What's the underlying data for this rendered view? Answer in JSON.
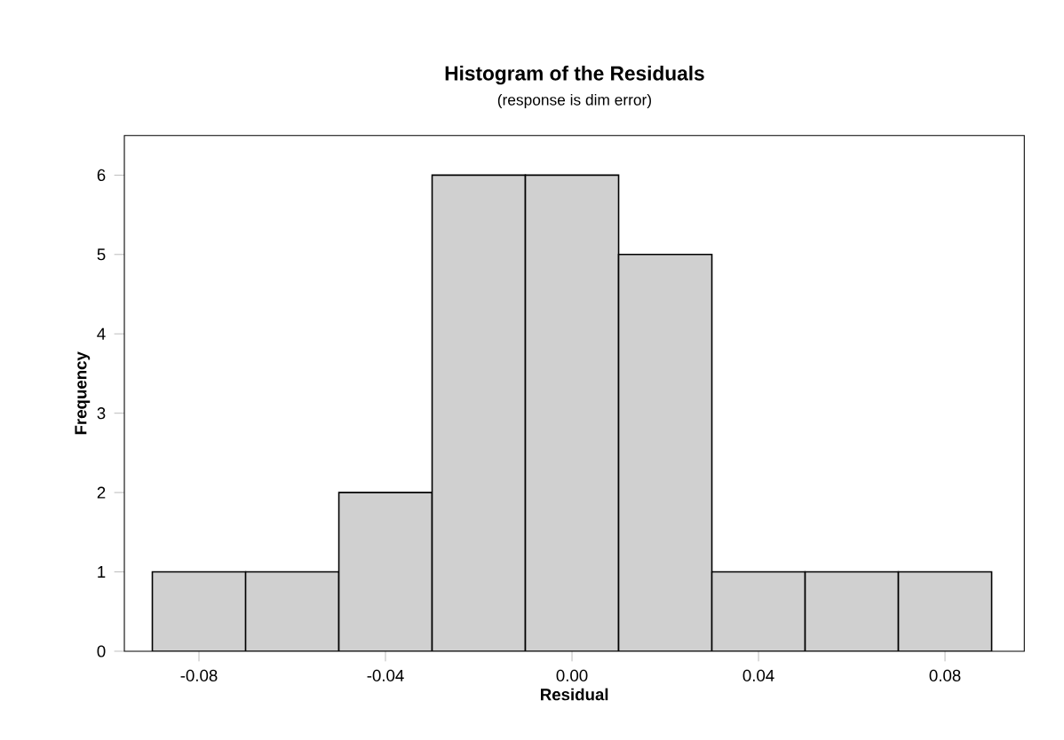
{
  "chart_data": {
    "type": "histogram",
    "title": "Histogram of the Residuals",
    "subtitle": "(response is dim error)",
    "xlabel": "Residual",
    "ylabel": "Frequency",
    "bins": [
      -0.09,
      -0.07,
      -0.05,
      -0.03,
      -0.01,
      0.01,
      0.03,
      0.05,
      0.07,
      0.09
    ],
    "values": [
      1,
      1,
      2,
      6,
      6,
      5,
      1,
      1,
      1
    ],
    "color": "#d0d0d0",
    "xlim": [
      -0.096,
      0.097
    ],
    "ylim": [
      0,
      6.5
    ],
    "xticks": [
      -0.08,
      -0.04,
      {
        "value": 0,
        "label": "0.00"
      },
      0.04,
      0.08
    ],
    "yticks": [
      0,
      1,
      2,
      3,
      4,
      5,
      6
    ]
  }
}
